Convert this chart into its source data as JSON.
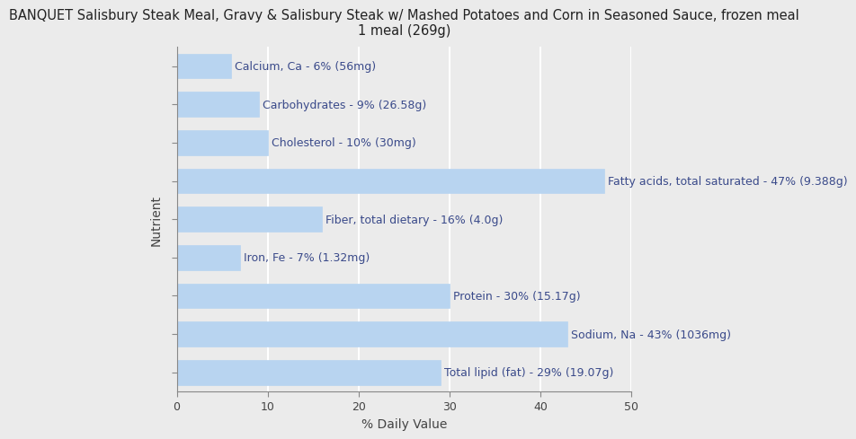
{
  "title": "BANQUET Salisbury Steak Meal, Gravy & Salisbury Steak w/ Mashed Potatoes and Corn in Seasoned Sauce, frozen meal\n1 meal (269g)",
  "xlabel": "% Daily Value",
  "ylabel": "Nutrient",
  "background_color": "#ebebeb",
  "bar_color": "#b8d4f0",
  "bar_edgecolor": "#b8d4f0",
  "nutrients": [
    "Calcium, Ca - 6% (56mg)",
    "Carbohydrates - 9% (26.58g)",
    "Cholesterol - 10% (30mg)",
    "Fatty acids, total saturated - 47% (9.388g)",
    "Fiber, total dietary - 16% (4.0g)",
    "Iron, Fe - 7% (1.32mg)",
    "Protein - 30% (15.17g)",
    "Sodium, Na - 43% (1036mg)",
    "Total lipid (fat) - 29% (19.07g)"
  ],
  "values": [
    6,
    9,
    10,
    47,
    16,
    7,
    30,
    43,
    29
  ],
  "xlim": [
    0,
    50
  ],
  "xticks": [
    0,
    10,
    20,
    30,
    40,
    50
  ],
  "title_fontsize": 10.5,
  "label_fontsize": 9,
  "axis_label_fontsize": 10,
  "tick_fontsize": 9,
  "grid_color": "#ffffff",
  "text_color": "#3a4a8a"
}
